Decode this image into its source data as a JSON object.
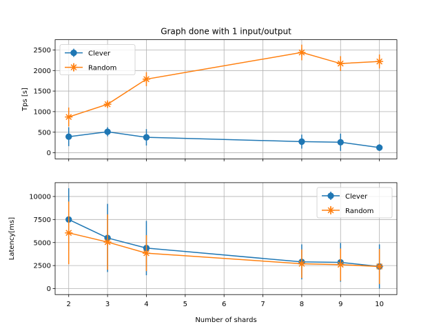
{
  "chart_data": [
    {
      "type": "line",
      "title": "Graph done with 1 input/output",
      "xlabel": "",
      "ylabel": "Tps [s]",
      "x": [
        2,
        3,
        4,
        8,
        9,
        10
      ],
      "xlim": [
        1.65,
        10.45
      ],
      "ylim": [
        -150,
        2750
      ],
      "yticks": [
        0,
        500,
        1000,
        1500,
        2000,
        2500
      ],
      "grid": true,
      "legend_position": "upper left",
      "series": [
        {
          "name": "Clever",
          "color": "#1f77b4",
          "marker": "circle",
          "values": [
            390,
            510,
            375,
            270,
            255,
            125
          ],
          "error": [
            230,
            110,
            200,
            170,
            210,
            80
          ]
        },
        {
          "name": "Random",
          "color": "#ff7f0e",
          "marker": "x-star",
          "values": [
            870,
            1180,
            1790,
            2440,
            2170,
            2220
          ],
          "error": [
            230,
            80,
            170,
            190,
            180,
            170
          ]
        }
      ]
    },
    {
      "type": "line",
      "title": "",
      "xlabel": "Number of shards",
      "ylabel": "Latency[ms]",
      "x": [
        2,
        3,
        4,
        8,
        9,
        10
      ],
      "xlim": [
        1.65,
        10.45
      ],
      "ylim": [
        -650,
        11500
      ],
      "xticks": [
        2,
        3,
        4,
        5,
        6,
        7,
        8,
        9,
        10
      ],
      "yticks": [
        0,
        2500,
        5000,
        7500,
        10000
      ],
      "grid": true,
      "legend_position": "upper right",
      "series": [
        {
          "name": "Clever",
          "color": "#1f77b4",
          "marker": "circle",
          "values": [
            7500,
            5500,
            4400,
            2900,
            2850,
            2400
          ],
          "error": [
            3400,
            3700,
            2950,
            1900,
            2100,
            2400
          ]
        },
        {
          "name": "Random",
          "color": "#ff7f0e",
          "marker": "x-star",
          "values": [
            6050,
            5050,
            3850,
            2700,
            2600,
            2400
          ],
          "error": [
            3400,
            3000,
            1950,
            1550,
            1750,
            1900
          ]
        }
      ]
    }
  ]
}
